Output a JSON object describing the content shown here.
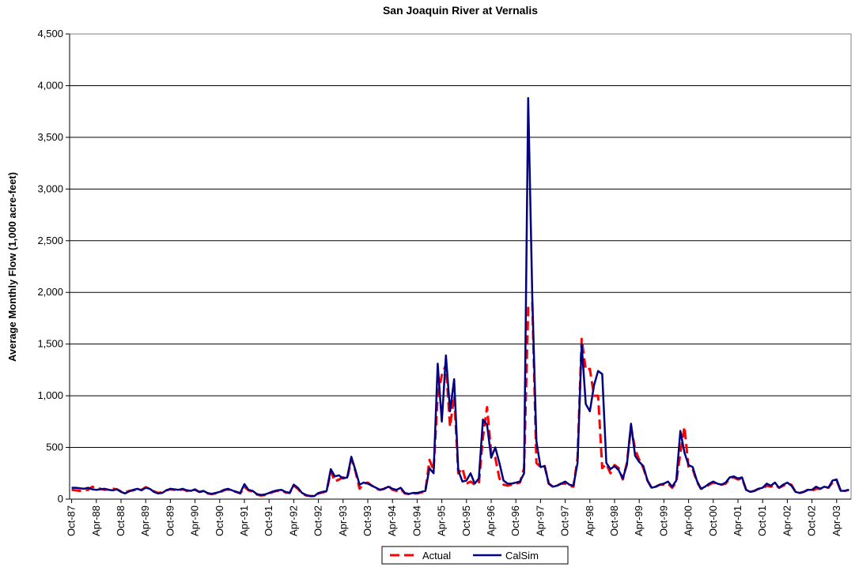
{
  "chart_data": {
    "type": "line",
    "title": "San Joaquin River at Vernalis",
    "y_label": "Average Monthly Flow (1,000 acre-feet)",
    "categories": [
      "Oct-87",
      null,
      null,
      null,
      null,
      null,
      "Apr-88",
      null,
      null,
      null,
      null,
      null,
      "Oct-88",
      null,
      null,
      null,
      null,
      null,
      "Apr-89",
      null,
      null,
      null,
      null,
      null,
      "Oct-89",
      null,
      null,
      null,
      null,
      null,
      "Apr-90",
      null,
      null,
      null,
      null,
      null,
      "Oct-90",
      null,
      null,
      null,
      null,
      null,
      "Apr-91",
      null,
      null,
      null,
      null,
      null,
      "Oct-91",
      null,
      null,
      null,
      null,
      null,
      "Apr-92",
      null,
      null,
      null,
      null,
      null,
      "Oct-92",
      null,
      null,
      null,
      null,
      null,
      "Apr-93",
      null,
      null,
      null,
      null,
      null,
      "Oct-93",
      null,
      null,
      null,
      null,
      null,
      "Apr-94",
      null,
      null,
      null,
      null,
      null,
      "Oct-94",
      null,
      null,
      null,
      null,
      null,
      "Apr-95",
      null,
      null,
      null,
      null,
      null,
      "Oct-95",
      null,
      null,
      null,
      null,
      null,
      "Apr-96",
      null,
      null,
      null,
      null,
      null,
      "Oct-96",
      null,
      null,
      null,
      null,
      null,
      "Apr-97",
      null,
      null,
      null,
      null,
      null,
      "Oct-97",
      null,
      null,
      null,
      null,
      null,
      "Apr-98",
      null,
      null,
      null,
      null,
      null,
      "Oct-98",
      null,
      null,
      null,
      null,
      null,
      "Apr-99",
      null,
      null,
      null,
      null,
      null,
      "Oct-99",
      null,
      null,
      null,
      null,
      null,
      "Apr-00",
      null,
      null,
      null,
      null,
      null,
      "Oct-00",
      null,
      null,
      null,
      null,
      null,
      "Apr-01",
      null,
      null,
      null,
      null,
      null,
      "Oct-01",
      null,
      null,
      null,
      null,
      null,
      "Apr-02",
      null,
      null,
      null,
      null,
      null,
      "Oct-02",
      null,
      null,
      null,
      null,
      null,
      "Apr-03",
      null,
      null,
      null
    ],
    "series": [
      {
        "name": "Actual",
        "color": "#ff0000",
        "dash": true,
        "values": [
          90,
          85,
          80,
          85,
          90,
          120,
          110,
          100,
          90,
          95,
          100,
          95,
          75,
          65,
          80,
          85,
          95,
          90,
          115,
          100,
          75,
          60,
          65,
          85,
          95,
          90,
          85,
          95,
          80,
          85,
          90,
          70,
          75,
          55,
          50,
          55,
          65,
          85,
          95,
          80,
          70,
          55,
          120,
          85,
          75,
          45,
          35,
          40,
          55,
          70,
          80,
          85,
          65,
          60,
          130,
          100,
          55,
          35,
          30,
          30,
          55,
          65,
          75,
          270,
          170,
          190,
          210,
          200,
          390,
          270,
          100,
          150,
          160,
          130,
          100,
          90,
          100,
          130,
          90,
          80,
          100,
          55,
          50,
          55,
          55,
          65,
          75,
          380,
          280,
          1000,
          1200,
          1300,
          700,
          1000,
          250,
          300,
          150,
          170,
          140,
          150,
          600,
          890,
          450,
          400,
          200,
          140,
          130,
          140,
          150,
          160,
          300,
          1850,
          1900,
          350,
          310,
          320,
          150,
          120,
          130,
          150,
          150,
          130,
          120,
          400,
          1550,
          1250,
          1260,
          1000,
          1000,
          300,
          340,
          250,
          330,
          300,
          190,
          350,
          700,
          480,
          380,
          300,
          180,
          110,
          120,
          140,
          140,
          150,
          110,
          160,
          450,
          700,
          300,
          290,
          170,
          100,
          110,
          140,
          160,
          150,
          140,
          150,
          200,
          210,
          190,
          200,
          90,
          70,
          80,
          100,
          100,
          130,
          120,
          140,
          110,
          130,
          150,
          140,
          70,
          60,
          70,
          90,
          80,
          100,
          100,
          120,
          110,
          160,
          180,
          80,
          80,
          90
        ]
      },
      {
        "name": "CalSim",
        "color": "#000080",
        "dash": false,
        "values": [
          110,
          110,
          105,
          100,
          110,
          95,
          90,
          95,
          100,
          90,
          85,
          95,
          70,
          55,
          75,
          90,
          100,
          85,
          110,
          100,
          70,
          55,
          60,
          85,
          100,
          95,
          90,
          100,
          85,
          80,
          95,
          70,
          80,
          60,
          50,
          60,
          70,
          90,
          100,
          85,
          70,
          60,
          145,
          90,
          80,
          50,
          40,
          45,
          60,
          75,
          85,
          90,
          70,
          60,
          140,
          110,
          60,
          40,
          30,
          30,
          60,
          70,
          80,
          290,
          220,
          230,
          200,
          210,
          410,
          280,
          140,
          160,
          150,
          130,
          110,
          90,
          100,
          120,
          100,
          90,
          110,
          60,
          50,
          60,
          60,
          70,
          80,
          300,
          250,
          1310,
          750,
          1390,
          850,
          1160,
          280,
          170,
          180,
          250,
          150,
          200,
          770,
          720,
          400,
          500,
          350,
          180,
          150,
          150,
          160,
          170,
          250,
          3880,
          1950,
          560,
          310,
          320,
          150,
          120,
          130,
          150,
          170,
          140,
          130,
          350,
          1500,
          920,
          850,
          1100,
          1240,
          1210,
          350,
          290,
          320,
          280,
          200,
          330,
          730,
          420,
          360,
          320,
          180,
          110,
          120,
          140,
          150,
          170,
          120,
          180,
          660,
          450,
          330,
          310,
          180,
          100,
          120,
          150,
          170,
          150,
          140,
          160,
          210,
          220,
          200,
          210,
          90,
          70,
          80,
          100,
          110,
          150,
          130,
          160,
          110,
          140,
          160,
          130,
          70,
          60,
          70,
          90,
          90,
          120,
          100,
          120,
          110,
          180,
          190,
          80,
          80,
          90
        ]
      }
    ],
    "ylim": [
      0,
      4500
    ],
    "yticks": [
      0,
      {
        "value": 500,
        "label": "500"
      },
      {
        "value": 1000,
        "label": "1,000"
      },
      {
        "value": 1500,
        "label": "1,500"
      },
      {
        "value": 2000,
        "label": "2,000"
      },
      {
        "value": 2500,
        "label": "2,500"
      },
      {
        "value": 3000,
        "label": "3,000"
      },
      {
        "value": 3500,
        "label": "3,500"
      },
      {
        "value": 4000,
        "label": "4,000"
      },
      {
        "value": 4500,
        "label": "4,500"
      }
    ],
    "grid": true,
    "legend": "bottom"
  }
}
